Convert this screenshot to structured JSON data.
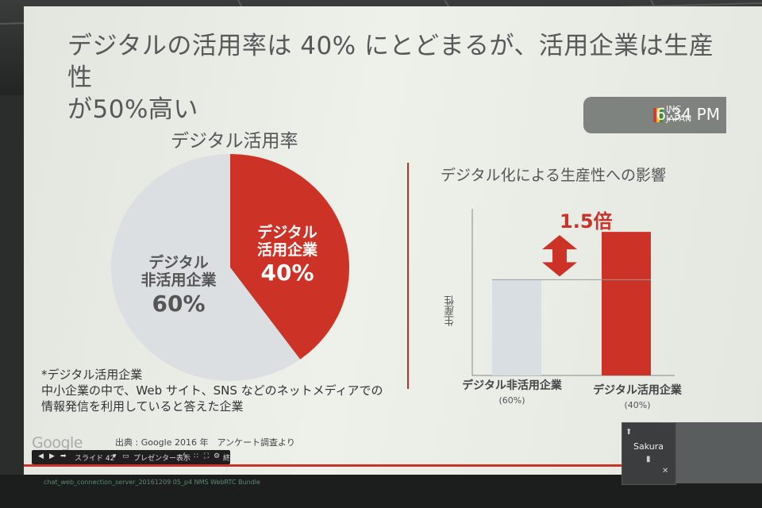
{
  "slide": {
    "title_line1": "デジタルの活用率は 40% にとどまるが、活用企業は生産性",
    "title_line2": "が50%高い"
  },
  "overlay": {
    "time": "6:34 PM",
    "logo_text_1": "INC",
    "logo_text_2": "JAPAN"
  },
  "pie_chart": {
    "title": "デジタル活用率",
    "slices": [
      {
        "label_line1": "デジタル",
        "label_line2": "活用企業",
        "pct_text": "40%",
        "value": 40,
        "color": "#cc3226"
      },
      {
        "label_line1": "デジタル",
        "label_line2": "非活用企業",
        "pct_text": "60%",
        "value": 60,
        "color": "#dcdfe2"
      }
    ]
  },
  "bar_chart": {
    "title": "デジタル化による生産性への影響",
    "ylabel": "生産性",
    "ratio_label": "1.5倍"
  },
  "chart_data": [
    {
      "type": "pie",
      "title": "デジタル活用率",
      "categories": [
        "デジタル活用企業",
        "デジタル非活用企業"
      ],
      "values": [
        40,
        60
      ],
      "colors": [
        "#cc3226",
        "#dcdfe2"
      ]
    },
    {
      "type": "bar",
      "title": "デジタル化による生産性への影響",
      "ylabel": "生産性",
      "categories": [
        "デジタル非活用企業",
        "デジタル活用企業"
      ],
      "category_notes": [
        "(60%)",
        "(40%)"
      ],
      "values": [
        1.0,
        1.5
      ],
      "colors": [
        "#d9dee2",
        "#cc3226"
      ],
      "annotation": "1.5倍",
      "ylim": [
        0,
        1.7
      ]
    }
  ],
  "footnote": {
    "line1": "*デジタル活用企業",
    "line2": "中小企業の中で、Web サイト、SNS などのネットメディアでの",
    "line3": "情報発信を利用していると答えた企業"
  },
  "source": "出典 : Google 2016 年　アンケート調査より",
  "google_logo": "Google",
  "toolbar": {
    "slide_label": "スライド 42",
    "presenter_label": "プレゼンター表示",
    "end_label": "終了"
  },
  "bottom_text": "chat_web_connection_server_20161209 05_p4 NMS WebRTC Bundle",
  "video": {
    "participant_name": "Sakura"
  }
}
